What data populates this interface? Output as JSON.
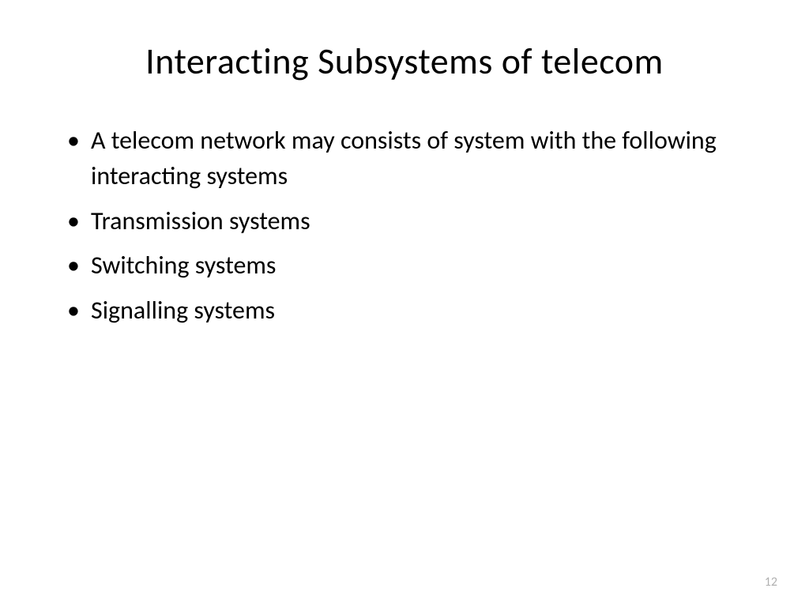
{
  "slide": {
    "title": "Interacting Subsystems of telecom",
    "bullets": [
      "A telecom network may consists of system with the following interacting systems",
      "Transmission systems",
      "Switching systems",
      "Signalling systems"
    ],
    "page_number": "12",
    "colors": {
      "background": "#ffffff",
      "text": "#000000",
      "page_number": "#b0b0b0"
    },
    "typography": {
      "title_fontsize": 46,
      "bullet_fontsize": 32,
      "page_number_fontsize": 16,
      "font_family": "Calibri"
    }
  }
}
